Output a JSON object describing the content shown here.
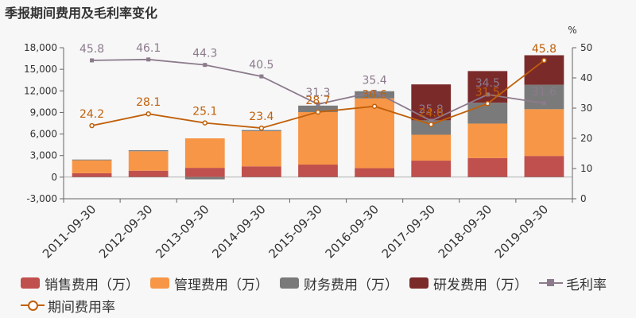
{
  "title": "季报期间费用及毛利率变化",
  "chart_data": {
    "type": "bar",
    "stacked": true,
    "categories": [
      "2011-09-30",
      "2012-09-30",
      "2013-09-30",
      "2014-09-30",
      "2015-09-30",
      "2016-09-30",
      "2017-09-30",
      "2018-09-30",
      "2019-09-30"
    ],
    "ylim_left": [
      -3000,
      18000
    ],
    "yticks_left": [
      "-3,000",
      "0",
      "3,000",
      "6,000",
      "9,000",
      "12,000",
      "15,000",
      "18,000"
    ],
    "ylim_right": [
      0,
      50
    ],
    "yticks_right": [
      "0",
      "10",
      "20",
      "30",
      "40",
      "50"
    ],
    "right_unit": "%",
    "series": [
      {
        "name": "销售费用（万）",
        "kind": "bar",
        "color": "#c0504d",
        "values": [
          550,
          900,
          1300,
          1500,
          1750,
          1250,
          2300,
          2650,
          2950
        ]
      },
      {
        "name": "管理费用（万）",
        "kind": "bar",
        "color": "#f79646",
        "values": [
          1800,
          2700,
          4100,
          4900,
          7300,
          9700,
          3600,
          4800,
          6500
        ]
      },
      {
        "name": "财务费用（万）",
        "kind": "bar",
        "color": "#7a7a7a",
        "values": [
          100,
          150,
          -300,
          150,
          900,
          1000,
          2000,
          2900,
          3400
        ]
      },
      {
        "name": "研发费用（万）",
        "kind": "bar",
        "color": "#7b2a2a",
        "values": [
          0,
          0,
          0,
          0,
          0,
          0,
          5000,
          4400,
          4100
        ]
      },
      {
        "name": "毛利率",
        "kind": "line",
        "axis": "right",
        "color": "#8c7b8c",
        "marker": "square",
        "values": [
          45.8,
          46.1,
          44.3,
          40.5,
          31.3,
          35.4,
          25.8,
          34.5,
          31.6
        ],
        "labels": [
          "45.8",
          "46.1",
          "44.3",
          "40.5",
          "31.3",
          "35.4",
          "25.8",
          "34.5",
          "31.6"
        ]
      },
      {
        "name": "期间费用率",
        "kind": "line",
        "axis": "right",
        "color": "#c0600a",
        "marker": "circle",
        "values": [
          24.2,
          28.1,
          25.1,
          23.4,
          28.7,
          30.6,
          24.6,
          31.5,
          45.8
        ],
        "labels": [
          "24.2",
          "28.1",
          "25.1",
          "23.4",
          "28.7",
          "30.6",
          "24.6",
          "31.5",
          "45.8"
        ]
      }
    ]
  }
}
